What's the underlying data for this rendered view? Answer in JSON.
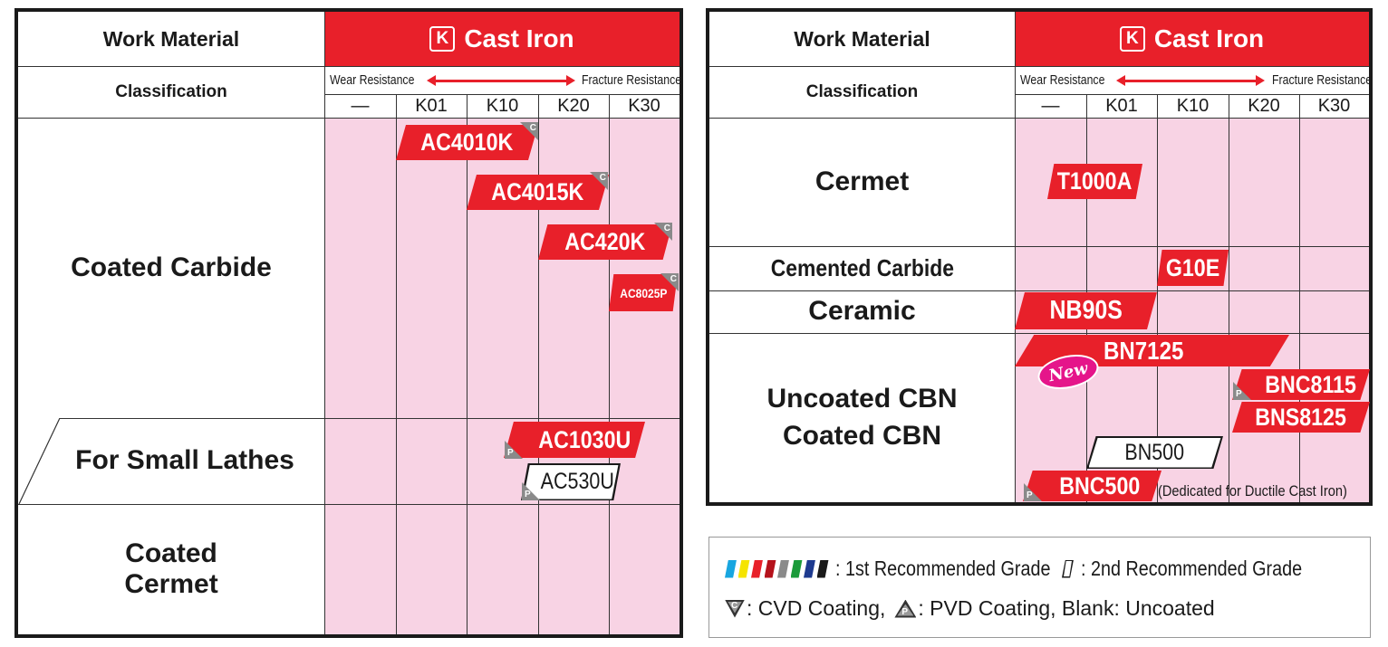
{
  "left_table": {
    "work_material_label": "Work Material",
    "classification_label": "Classification",
    "material_letter": "K",
    "material_name": "Cast Iron",
    "wear_resistance": "Wear Resistance",
    "fracture_resistance": "Fracture Resistance",
    "columns": [
      "—",
      "K01",
      "K10",
      "K20",
      "K30"
    ],
    "rows": {
      "coated_carbide": "Coated Carbide",
      "small_lathes": "For Small Lathes",
      "coated_cermet": "Coated Cermet"
    },
    "grades": {
      "ac4010k": "AC4010K",
      "ac4015k": "AC4015K",
      "ac420k": "AC420K",
      "ac8025p": "AC8025P",
      "ac1030u": "AC1030U",
      "ac530u": "AC530U"
    }
  },
  "right_table": {
    "work_material_label": "Work Material",
    "classification_label": "Classification",
    "material_letter": "K",
    "material_name": "Cast Iron",
    "wear_resistance": "Wear Resistance",
    "fracture_resistance": "Fracture Resistance",
    "columns": [
      "—",
      "K01",
      "K10",
      "K20",
      "K30"
    ],
    "rows": {
      "cermet": "Cermet",
      "cemented_carbide": "Cemented Carbide",
      "ceramic": "Ceramic",
      "cbn_line1": "Uncoated CBN",
      "cbn_line2": "Coated CBN"
    },
    "grades": {
      "t1000a": "T1000A",
      "g10e": "G10E",
      "nb90s": "NB90S",
      "bn7125": "BN7125",
      "bnc8115": "BNC8115",
      "bns8125": "BNS8125",
      "bn500": "BN500",
      "bnc500": "BNC500"
    },
    "new_badge": "New",
    "ductile_note": "(Dedicated for Ductile Cast Iron)"
  },
  "coating_marks": {
    "cvd": "C",
    "pvd": "P"
  },
  "legend": {
    "first_recommended": ": 1st Recommended Grade",
    "second_recommended": ": 2nd Recommended Grade",
    "cvd": ": CVD Coating,",
    "pvd": ": PVD Coating, Blank: Uncoated",
    "swatch_colors": [
      "#18a6e0",
      "#f5e400",
      "#e8202a",
      "#b5121b",
      "#8a8a8a",
      "#1b9b3a",
      "#1d3a8f",
      "#1a1a1a"
    ]
  },
  "colors": {
    "red": "#e8202a",
    "pink": "#f8d3e4",
    "magenta": "#e5158a"
  }
}
